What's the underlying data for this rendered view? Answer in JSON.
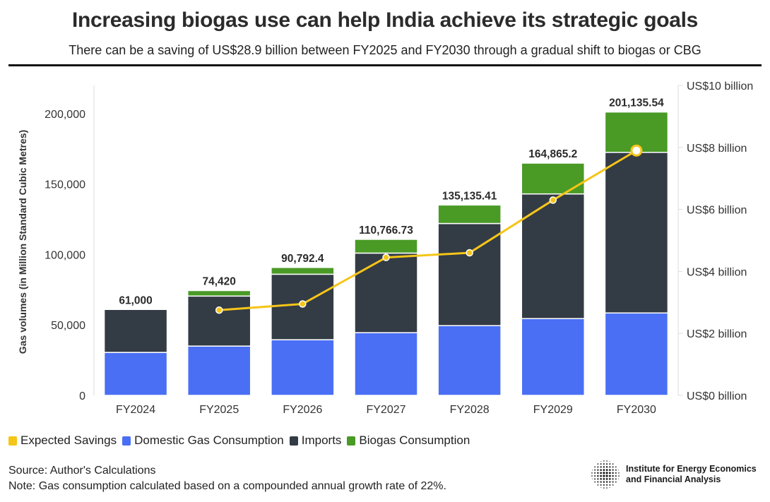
{
  "header": {
    "title": "Increasing biogas use can help India achieve its strategic goals",
    "subtitle": "There can be a saving of US$28.9 billion between FY2025 and FY2030 through a gradual shift to biogas or CBG"
  },
  "chart_data": {
    "type": "bar",
    "stacked": true,
    "categories": [
      "FY2024",
      "FY2025",
      "FY2026",
      "FY2027",
      "FY2028",
      "FY2029",
      "FY2030"
    ],
    "series": [
      {
        "name": "Domestic Gas Consumption",
        "color": "#4a6ff5",
        "values": [
          30500,
          35000,
          39500,
          44500,
          49500,
          54500,
          58500
        ]
      },
      {
        "name": "Imports",
        "color": "#333b45",
        "values": [
          30500,
          35500,
          46500,
          56500,
          72500,
          88500,
          114000
        ]
      },
      {
        "name": "Biogas Consumption",
        "color": "#4a9a26",
        "values": [
          0,
          3920,
          4792.4,
          9766.73,
          13135.41,
          21865.2,
          28635.54
        ]
      }
    ],
    "totals": [
      "61,000",
      "74,420",
      "90,792.4",
      "110,766.73",
      "135,135.41",
      "164,865.2",
      "201,135.54"
    ],
    "line_series": {
      "name": "Expected Savings",
      "color": "#f5c518",
      "axis": "right",
      "x": [
        "FY2025",
        "FY2026",
        "FY2027",
        "FY2028",
        "FY2029",
        "FY2030"
      ],
      "values": [
        2.75,
        2.95,
        4.45,
        4.6,
        6.3,
        7.9
      ]
    },
    "ylabel": "Gas volumes (in Million Standard Cubic Metres)",
    "ylim": [
      0,
      220000
    ],
    "yticks": [
      0,
      50000,
      100000,
      150000,
      200000
    ],
    "ytick_labels": [
      "0",
      "50,000",
      "100,000",
      "150,000",
      "200,000"
    ],
    "y2lim": [
      0,
      10
    ],
    "y2ticks": [
      0,
      2,
      4,
      6,
      8,
      10
    ],
    "y2tick_labels": [
      "US$0 billion",
      "US$2 billion",
      "US$4 billion",
      "US$6 billion",
      "US$8 billion",
      "US$10 billion"
    ],
    "grid": false,
    "legend_position": "bottom-left"
  },
  "legend": [
    {
      "label": "Expected Savings",
      "color": "#f5c518"
    },
    {
      "label": "Domestic Gas Consumption",
      "color": "#4a6ff5"
    },
    {
      "label": "Imports",
      "color": "#333b45"
    },
    {
      "label": "Biogas Consumption",
      "color": "#4a9a26"
    }
  ],
  "footer": {
    "source": "Source: Author's Calculations",
    "note": "Note: Gas consumption calculated based on a compounded annual growth rate of 22%.",
    "logo_line1": "Institute for Energy Economics",
    "logo_line2": "and Financial Analysis"
  }
}
